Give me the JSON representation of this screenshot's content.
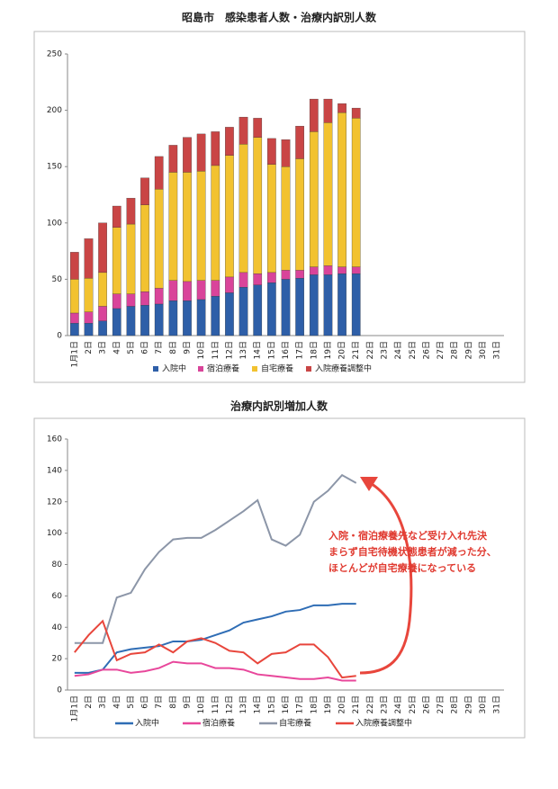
{
  "chart_data": [
    {
      "type": "bar",
      "stacked": true,
      "title": "昭島市　感染患者人数・治療内訳別人数",
      "categories": [
        "1月1日",
        "2日",
        "3日",
        "4日",
        "5日",
        "6日",
        "7日",
        "8日",
        "9日",
        "10日",
        "11日",
        "12日",
        "13日",
        "14日",
        "15日",
        "16日",
        "17日",
        "18日",
        "19日",
        "20日",
        "21日",
        "22日",
        "23日",
        "24日",
        "25日",
        "26日",
        "27日",
        "28日",
        "29日",
        "30日",
        "31日"
      ],
      "series": [
        {
          "name": "入院中",
          "color": "#2e5fa8",
          "values": [
            11,
            11,
            13,
            24,
            26,
            27,
            28,
            31,
            31,
            32,
            35,
            38,
            43,
            45,
            47,
            50,
            51,
            54,
            54,
            55,
            55,
            null,
            null,
            null,
            null,
            null,
            null,
            null,
            null,
            null,
            null
          ]
        },
        {
          "name": "宿泊療養",
          "color": "#d9449a",
          "values": [
            9,
            10,
            13,
            13,
            11,
            12,
            14,
            18,
            17,
            17,
            14,
            14,
            13,
            10,
            9,
            8,
            7,
            7,
            8,
            6,
            6,
            null,
            null,
            null,
            null,
            null,
            null,
            null,
            null,
            null,
            null
          ]
        },
        {
          "name": "自宅療養",
          "color": "#f2c230",
          "values": [
            30,
            30,
            30,
            59,
            62,
            77,
            88,
            96,
            97,
            97,
            102,
            108,
            114,
            121,
            96,
            92,
            99,
            120,
            127,
            137,
            132,
            null,
            null,
            null,
            null,
            null,
            null,
            null,
            null,
            null,
            null
          ]
        },
        {
          "name": "入院療養調整中",
          "color": "#c94545",
          "values": [
            24,
            35,
            44,
            19,
            23,
            24,
            29,
            24,
            31,
            33,
            30,
            25,
            24,
            17,
            23,
            24,
            29,
            29,
            21,
            8,
            9,
            null,
            null,
            null,
            null,
            null,
            null,
            null,
            null,
            null,
            null
          ]
        }
      ],
      "ylim": [
        0,
        250
      ],
      "yticks": [
        0,
        50,
        100,
        150,
        200,
        250
      ],
      "grid": false
    },
    {
      "type": "line",
      "title": "治療内訳別増加人数",
      "categories": [
        "1月1日",
        "2日",
        "3日",
        "4日",
        "5日",
        "6日",
        "7日",
        "8日",
        "9日",
        "10日",
        "11日",
        "12日",
        "13日",
        "14日",
        "15日",
        "16日",
        "17日",
        "18日",
        "19日",
        "20日",
        "21日",
        "22日",
        "23日",
        "24日",
        "25日",
        "26日",
        "27日",
        "28日",
        "29日",
        "30日",
        "31日"
      ],
      "series": [
        {
          "name": "入院中",
          "color": "#2f6db5",
          "values": [
            11,
            11,
            13,
            24,
            26,
            27,
            28,
            31,
            31,
            32,
            35,
            38,
            43,
            45,
            47,
            50,
            51,
            54,
            54,
            55,
            55,
            null,
            null,
            null,
            null,
            null,
            null,
            null,
            null,
            null,
            null
          ]
        },
        {
          "name": "宿泊療養",
          "color": "#e8479b",
          "values": [
            9,
            10,
            13,
            13,
            11,
            12,
            14,
            18,
            17,
            17,
            14,
            14,
            13,
            10,
            9,
            8,
            7,
            7,
            8,
            6,
            6,
            null,
            null,
            null,
            null,
            null,
            null,
            null,
            null,
            null,
            null
          ]
        },
        {
          "name": "自宅療養",
          "color": "#8c96a8",
          "values": [
            30,
            30,
            30,
            59,
            62,
            77,
            88,
            96,
            97,
            97,
            102,
            108,
            114,
            121,
            96,
            92,
            99,
            120,
            127,
            137,
            132,
            null,
            null,
            null,
            null,
            null,
            null,
            null,
            null,
            null,
            null
          ]
        },
        {
          "name": "入院療養調整中",
          "color": "#e8463c",
          "values": [
            24,
            35,
            44,
            19,
            23,
            24,
            29,
            24,
            31,
            33,
            30,
            25,
            24,
            17,
            23,
            24,
            29,
            29,
            21,
            8,
            9,
            null,
            null,
            null,
            null,
            null,
            null,
            null,
            null,
            null,
            null
          ]
        }
      ],
      "ylim": [
        0,
        160
      ],
      "yticks": [
        0,
        20,
        40,
        60,
        80,
        100,
        120,
        140,
        160
      ],
      "grid": false,
      "annotations": [
        "入院・宿泊療養先など受け入れ先決",
        "まらず自宅待機状態患者が減った分、",
        "ほとんどが自宅療養になっている"
      ]
    }
  ]
}
